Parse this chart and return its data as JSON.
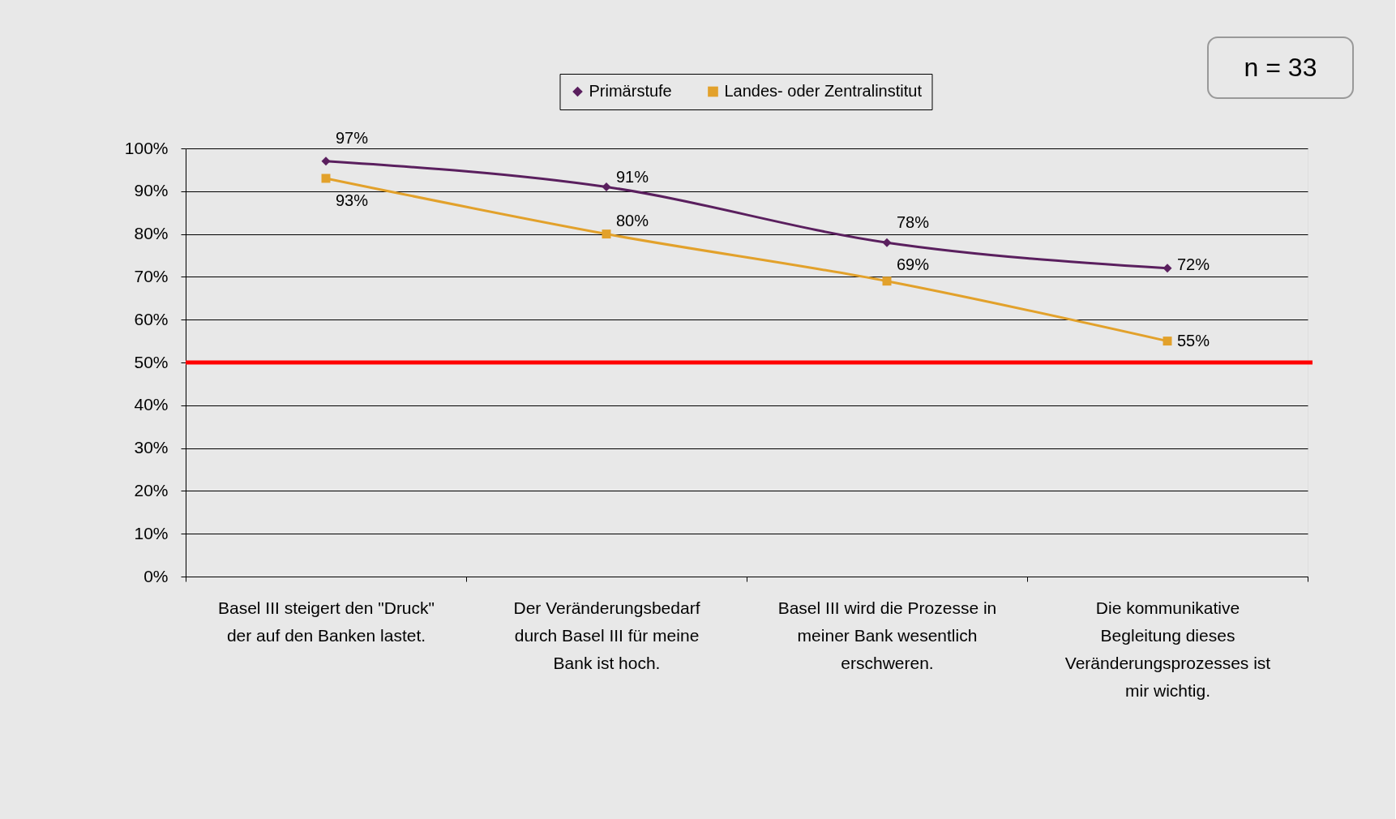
{
  "chart_data": {
    "type": "line",
    "categories": [
      "Basel III steigert den \"Druck\" der auf den Banken lastet.",
      "Der Veränderungsbedarf durch Basel III für meine Bank ist hoch.",
      "Basel III wird die Prozesse in meiner Bank wesentlich erschweren.",
      "Die kommunikative Begleitung dieses Veränderungsprozesses ist mir wichtig."
    ],
    "series": [
      {
        "name": "Primärstufe",
        "color": "#5a1f5e",
        "marker": "diamond",
        "values": [
          97,
          91,
          78,
          72
        ],
        "value_labels": [
          "97%",
          "91%",
          "78%",
          "72%"
        ]
      },
      {
        "name": "Landes- oder Zentralinstitut",
        "color": "#e2a12b",
        "marker": "square",
        "values": [
          93,
          80,
          69,
          55
        ],
        "value_labels": [
          "93%",
          "80%",
          "69%",
          "55%"
        ]
      }
    ],
    "ylim": [
      0,
      100
    ],
    "yticks": [
      {
        "value": 0,
        "label": "0%"
      },
      {
        "value": 10,
        "label": "10%"
      },
      {
        "value": 20,
        "label": "20%"
      },
      {
        "value": 30,
        "label": "30%"
      },
      {
        "value": 40,
        "label": "40%"
      },
      {
        "value": 50,
        "label": "50%"
      },
      {
        "value": 60,
        "label": "60%"
      },
      {
        "value": 70,
        "label": "70%"
      },
      {
        "value": 80,
        "label": "80%"
      },
      {
        "value": 90,
        "label": "90%"
      },
      {
        "value": 100,
        "label": "100%"
      }
    ],
    "grid": "y",
    "legend": "top",
    "line_style": "solid",
    "ref_lines": [
      {
        "axis": "y",
        "value": 50,
        "color": "#ff0000"
      }
    ],
    "annotations": [
      "n = 33"
    ]
  }
}
